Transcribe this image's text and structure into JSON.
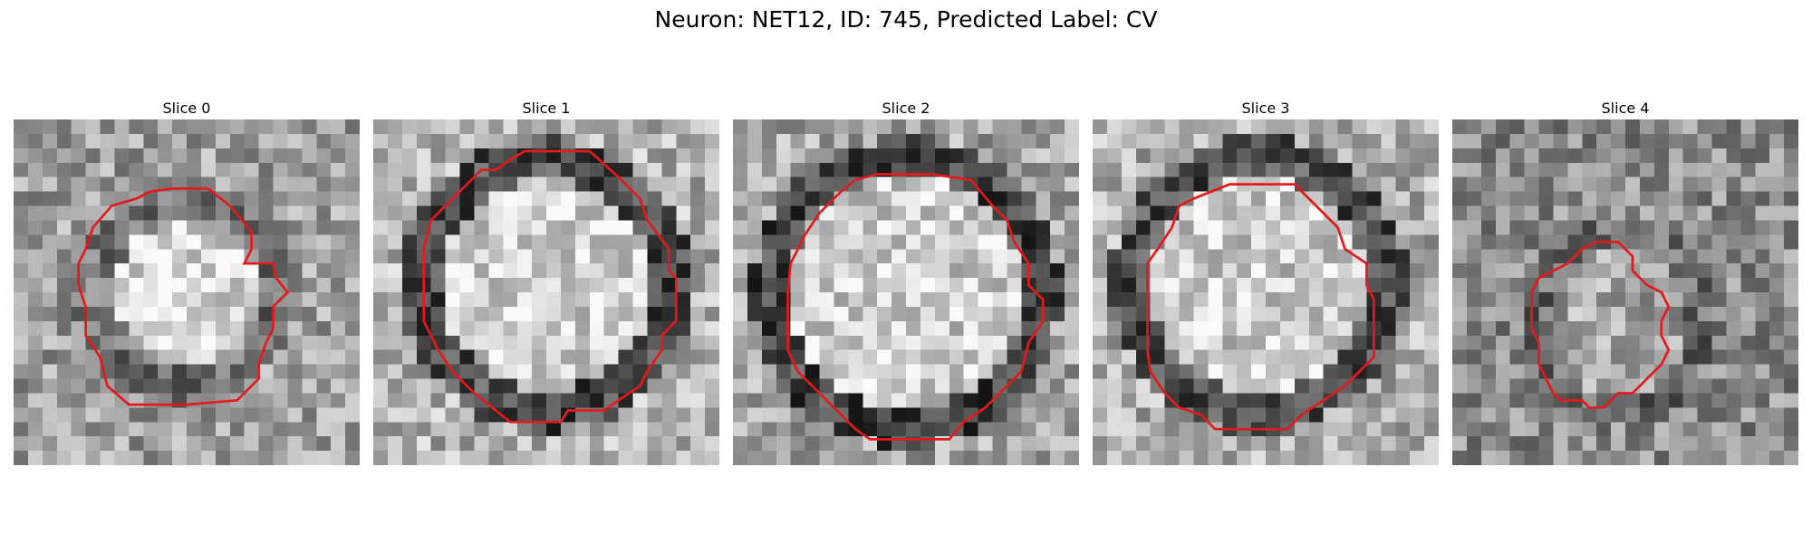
{
  "figure": {
    "title": "Neuron: NET12, ID: 745, Predicted Label: CV"
  },
  "panels": [
    {
      "title": "Slice 0",
      "image": "grayscale-microscopy-patch",
      "seed": 11,
      "blob": {
        "cx": 12,
        "cy": 12,
        "r": 6.2,
        "ring": 2.2,
        "inner": 0.85,
        "ringDark": 0.45,
        "bg": 0.62
      },
      "outline_color": "#e31a1c",
      "contour": [
        [
          11,
          4.8
        ],
        [
          13.5,
          4.8
        ],
        [
          15,
          6
        ],
        [
          16.5,
          7.8
        ],
        [
          16.5,
          9
        ],
        [
          16,
          10
        ],
        [
          17,
          10
        ],
        [
          18,
          10
        ],
        [
          18.2,
          11
        ],
        [
          19,
          12
        ],
        [
          18,
          13
        ],
        [
          18,
          14.5
        ],
        [
          17.5,
          15.5
        ],
        [
          17,
          17
        ],
        [
          17,
          18
        ],
        [
          15.5,
          19.5
        ],
        [
          12,
          19.8
        ],
        [
          8,
          19.8
        ],
        [
          6.5,
          18.5
        ],
        [
          6,
          16.5
        ],
        [
          5,
          15
        ],
        [
          5,
          13
        ],
        [
          4.5,
          11.5
        ],
        [
          4.5,
          10
        ],
        [
          5,
          9
        ],
        [
          5.5,
          7.5
        ],
        [
          6.8,
          6
        ],
        [
          8.5,
          5.5
        ],
        [
          9.5,
          5
        ]
      ]
    },
    {
      "title": "Slice 1",
      "image": "grayscale-microscopy-patch",
      "seed": 23,
      "blob": {
        "cx": 12,
        "cy": 11.5,
        "r": 8.4,
        "ring": 2.4,
        "inner": 0.82,
        "ringDark": 0.3,
        "bg": 0.7
      },
      "outline_color": "#e31a1c",
      "contour": [
        [
          10.5,
          2.2
        ],
        [
          15,
          2.2
        ],
        [
          17,
          4
        ],
        [
          18.5,
          5.5
        ],
        [
          19,
          7
        ],
        [
          20.5,
          9
        ],
        [
          20.5,
          10.5
        ],
        [
          21,
          11
        ],
        [
          21,
          14
        ],
        [
          20,
          15
        ],
        [
          20,
          16
        ],
        [
          19,
          17.5
        ],
        [
          18.5,
          18.5
        ],
        [
          17,
          19.5
        ],
        [
          16,
          20.2
        ],
        [
          13.5,
          20.2
        ],
        [
          13,
          21
        ],
        [
          9.5,
          21
        ],
        [
          8.5,
          20.2
        ],
        [
          7,
          19
        ],
        [
          5.5,
          17.5
        ],
        [
          4.5,
          16
        ],
        [
          4,
          15
        ],
        [
          3.5,
          14
        ],
        [
          3.5,
          9
        ],
        [
          4,
          7
        ],
        [
          5,
          6
        ],
        [
          6,
          5
        ],
        [
          7.5,
          3.5
        ],
        [
          8.5,
          3.5
        ],
        [
          9.5,
          2.8
        ]
      ]
    },
    {
      "title": "Slice 2",
      "image": "grayscale-microscopy-patch",
      "seed": 37,
      "blob": {
        "cx": 12,
        "cy": 12,
        "r": 9.2,
        "ring": 2.2,
        "inner": 0.8,
        "ringDark": 0.28,
        "bg": 0.65
      },
      "outline_color": "#e31a1c",
      "contour": [
        [
          10,
          3.8
        ],
        [
          13.8,
          3.8
        ],
        [
          16.5,
          4.2
        ],
        [
          18,
          6
        ],
        [
          19,
          7
        ],
        [
          19.5,
          8.5
        ],
        [
          20.5,
          10
        ],
        [
          20.5,
          11.5
        ],
        [
          21.5,
          12.5
        ],
        [
          21.5,
          14
        ],
        [
          20.5,
          15.5
        ],
        [
          20,
          17.5
        ],
        [
          19,
          18.5
        ],
        [
          17.5,
          20
        ],
        [
          16,
          21
        ],
        [
          15,
          22.2
        ],
        [
          9.5,
          22.2
        ],
        [
          8.5,
          21.5
        ],
        [
          7.5,
          20.5
        ],
        [
          6,
          19
        ],
        [
          4.5,
          17.5
        ],
        [
          3.8,
          16
        ],
        [
          3.8,
          12
        ],
        [
          4,
          10
        ],
        [
          5,
          8
        ],
        [
          6,
          6.5
        ],
        [
          7.5,
          5
        ],
        [
          8.5,
          4.2
        ]
      ]
    },
    {
      "title": "Slice 3",
      "image": "grayscale-microscopy-patch",
      "seed": 51,
      "blob": {
        "cx": 11.5,
        "cy": 11.5,
        "r": 8.6,
        "ring": 2.4,
        "inner": 0.8,
        "ringDark": 0.32,
        "bg": 0.68
      },
      "outline_color": "#e31a1c",
      "contour": [
        [
          9.5,
          4.5
        ],
        [
          14,
          4.5
        ],
        [
          15.5,
          6
        ],
        [
          17,
          7.5
        ],
        [
          17.5,
          9
        ],
        [
          19,
          10
        ],
        [
          19,
          11.5
        ],
        [
          19.5,
          12.5
        ],
        [
          19.5,
          16.5
        ],
        [
          18.5,
          17.5
        ],
        [
          17.5,
          18.5
        ],
        [
          16,
          19.5
        ],
        [
          14.5,
          20.5
        ],
        [
          13.5,
          21.5
        ],
        [
          8.5,
          21.5
        ],
        [
          7.5,
          20.5
        ],
        [
          6,
          20
        ],
        [
          5,
          19
        ],
        [
          4,
          17.5
        ],
        [
          3.8,
          16
        ],
        [
          3.8,
          10
        ],
        [
          4.5,
          9
        ],
        [
          5.5,
          7.5
        ],
        [
          6,
          6
        ],
        [
          7,
          5.5
        ]
      ]
    },
    {
      "title": "Slice 4",
      "image": "grayscale-microscopy-patch",
      "seed": 67,
      "blob": {
        "cx": 11.5,
        "cy": 14,
        "r": 5.8,
        "ring": 1.6,
        "inner": 0.65,
        "ringDark": 0.42,
        "bg": 0.55
      },
      "outline_color": "#e31a1c",
      "contour": [
        [
          10,
          8.5
        ],
        [
          11.5,
          8.5
        ],
        [
          12.5,
          9.5
        ],
        [
          12.5,
          10.5
        ],
        [
          13,
          11
        ],
        [
          13.5,
          11.5
        ],
        [
          14.5,
          12
        ],
        [
          15,
          13
        ],
        [
          14.5,
          14
        ],
        [
          14.5,
          15
        ],
        [
          15,
          16
        ],
        [
          14.5,
          17
        ],
        [
          13.5,
          18
        ],
        [
          12.5,
          19
        ],
        [
          11.5,
          19
        ],
        [
          10.5,
          20
        ],
        [
          9.5,
          20
        ],
        [
          9,
          19.5
        ],
        [
          7.5,
          19.5
        ],
        [
          7,
          19
        ],
        [
          6.5,
          18
        ],
        [
          6,
          17
        ],
        [
          6,
          15.5
        ],
        [
          5.5,
          14.5
        ],
        [
          5.5,
          12
        ],
        [
          6,
          11
        ],
        [
          7,
          10.5
        ],
        [
          8,
          10
        ],
        [
          9,
          9
        ]
      ]
    }
  ]
}
